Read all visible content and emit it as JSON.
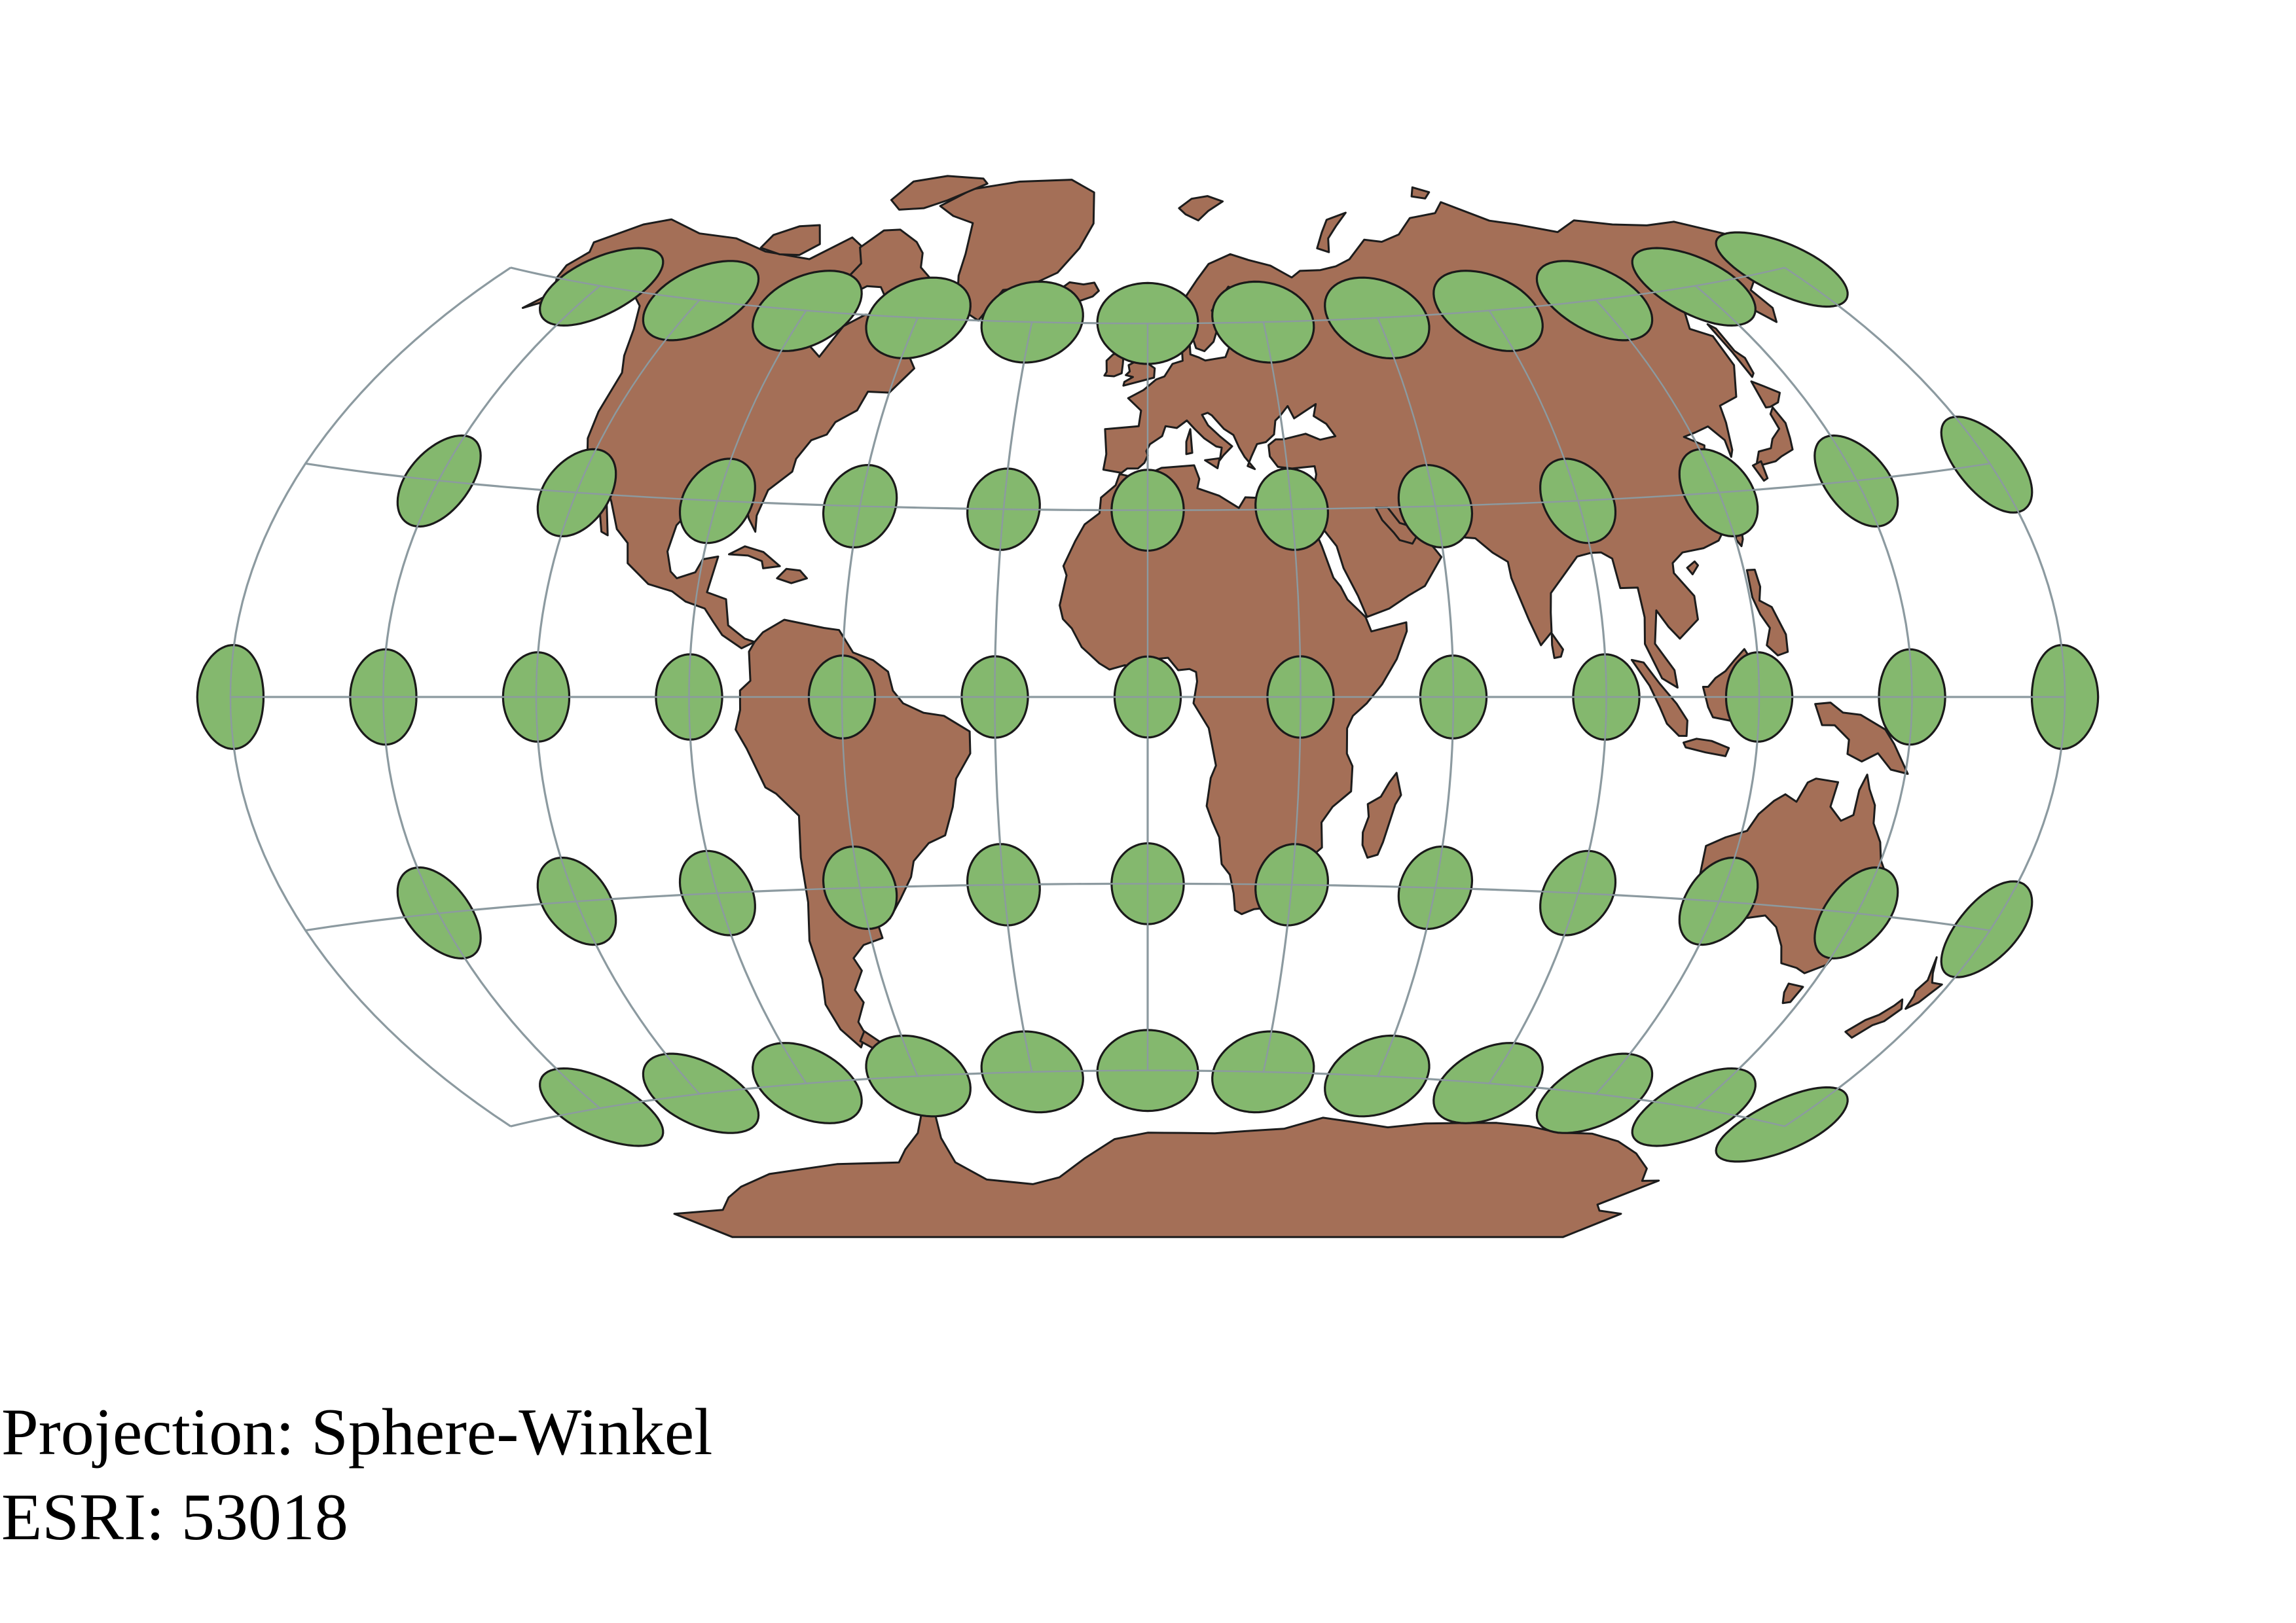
{
  "caption": {
    "projection": "Projection: Sphere-Winkel",
    "code": "ESRI: 53018"
  },
  "colors": {
    "land": "#a46f57",
    "land_outline": "#1c1c1c",
    "ellipse_fill": "#84b86e",
    "ellipse_outline": "#1a1a1a",
    "graticule": "#8c9aa0",
    "background": "#ffffff"
  },
  "tissot": {
    "latitudes": [
      60,
      30,
      0,
      -30,
      -60
    ],
    "longitudes": [
      -150,
      -120,
      -90,
      -60,
      -30,
      0,
      30,
      60,
      90,
      120,
      150,
      180
    ],
    "longitudes_row_equator": [
      -180,
      -150,
      -120,
      -90,
      -60,
      -30,
      0,
      30,
      60,
      90,
      120,
      150,
      180
    ]
  }
}
